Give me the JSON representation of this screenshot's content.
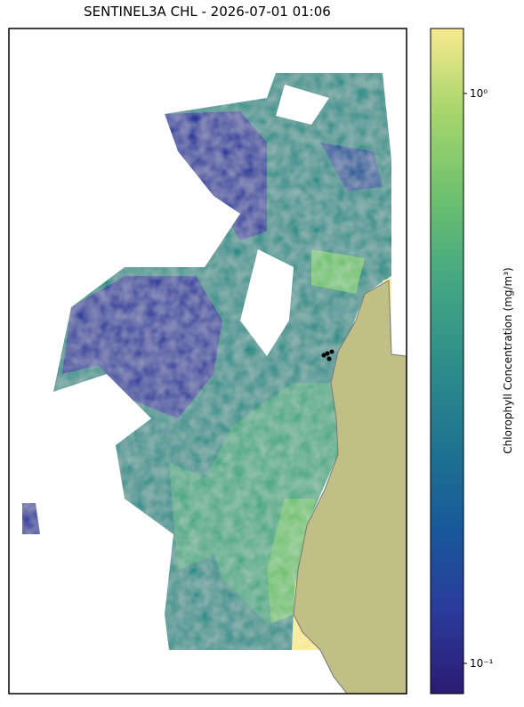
{
  "chart_data": {
    "type": "map",
    "title": "SENTINEL3A CHL - 2026-07-01 01:06",
    "colorbar": {
      "label": "Chlorophyll Concentration (mg/m³)",
      "scale": "log",
      "lim": [
        0.0885,
        1.3
      ],
      "ticks": [
        {
          "value": 0.1,
          "label": "10⁻¹"
        },
        {
          "value": 1,
          "label": "10⁰"
        }
      ],
      "colormap": [
        "#2b1b72",
        "#2b3b9c",
        "#17599a",
        "#1f7590",
        "#2e8f8a",
        "#45a882",
        "#6ec16e",
        "#a7d66c",
        "#f7e98e"
      ]
    },
    "land_color": "#bfbf86"
  }
}
